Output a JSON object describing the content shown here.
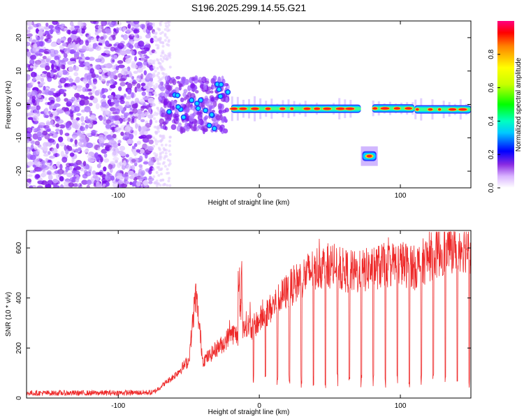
{
  "title": "S196.2025.299.14.55.G21",
  "chart_data": [
    {
      "type": "heatmap",
      "xlabel": "Height of straight line (km)",
      "ylabel": "Frequency (Hz)",
      "xlim": [
        -165,
        150
      ],
      "ylim": [
        -25,
        25
      ],
      "x_ticks": [
        -100,
        0,
        100
      ],
      "x_tick_labels": [
        "-100",
        "0",
        "100"
      ],
      "y_ticks": [
        -20,
        -10,
        0,
        10,
        20
      ],
      "y_tick_labels": [
        "-20",
        "-10",
        "0",
        "10",
        "20"
      ],
      "colorbar": {
        "label": "Normalized spectral amplitude",
        "range": [
          0,
          1
        ],
        "ticks": [
          0.0,
          0.2,
          0.4,
          0.6,
          0.8
        ],
        "tick_labels": [
          "0.0",
          "0.2",
          "0.4",
          "0.6",
          "0.8"
        ]
      },
      "noise_region_x": [
        -165,
        -75
      ],
      "tone_track": [
        {
          "x": [
            -68,
            -55
          ],
          "freq": 1.0
        },
        {
          "x": [
            -55,
            -40
          ],
          "freq": -2.0
        },
        {
          "x": [
            -40,
            -30
          ],
          "freq": -5.0
        },
        {
          "x": [
            -30,
            -20
          ],
          "freq": 3.0
        },
        {
          "x": [
            -20,
            72
          ],
          "freq": -1.3
        },
        {
          "x": [
            72,
            84
          ],
          "freq": -15.5
        },
        {
          "x": [
            80,
            110
          ],
          "freq": -1.2
        },
        {
          "x": [
            110,
            150
          ],
          "freq": -1.5
        }
      ]
    },
    {
      "type": "line",
      "xlabel": "Height of straight line (km)",
      "ylabel": "SNR (10 * v/v)",
      "xlim": [
        -165,
        150
      ],
      "ylim": [
        0,
        670
      ],
      "x_ticks": [
        -100,
        0,
        100
      ],
      "x_tick_labels": [
        "-100",
        "0",
        "100"
      ],
      "y_ticks": [
        0,
        200,
        400,
        600
      ],
      "y_tick_labels": [
        "0",
        "200",
        "400",
        "600"
      ],
      "series": [
        {
          "name": "SNR",
          "color": "#ee2a2a",
          "x": [
            -165,
            -120,
            -75,
            -70,
            -60,
            -50,
            -45,
            -40,
            -35,
            -30,
            -25,
            -20,
            -15,
            -10,
            -5,
            0,
            10,
            20,
            30,
            40,
            50,
            60,
            70,
            80,
            90,
            100,
            110,
            120,
            130,
            140,
            150
          ],
          "y": [
            20,
            20,
            22,
            45,
            90,
            150,
            420,
            150,
            170,
            200,
            220,
            260,
            250,
            300,
            280,
            310,
            370,
            430,
            480,
            520,
            530,
            510,
            500,
            520,
            530,
            540,
            520,
            560,
            590,
            610,
            600
          ]
        }
      ]
    }
  ]
}
